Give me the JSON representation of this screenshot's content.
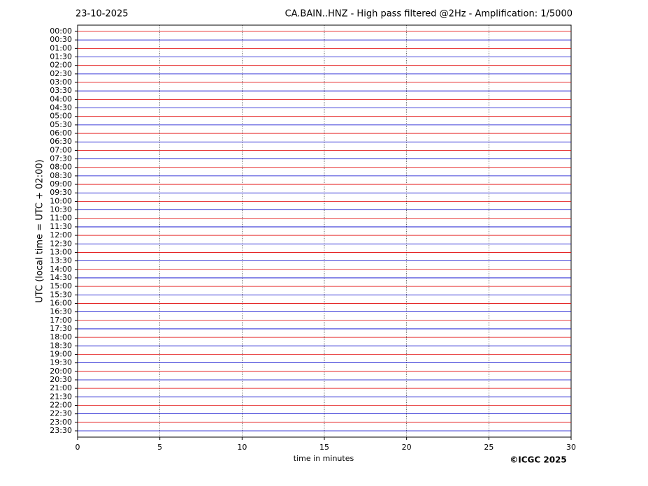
{
  "chart_data": {
    "type": "helicorder",
    "date": "23-10-2025",
    "title": "CA.BAIN..HNZ - High pass filtered @2Hz - Amplification: 1/5000",
    "ylabel": "UTC (local time = UTC + 02:00)",
    "xlabel": "time in minutes",
    "copyright": "©ICGC 2025",
    "categories": [
      "00:00",
      "00:30",
      "01:00",
      "01:30",
      "02:00",
      "02:30",
      "03:00",
      "03:30",
      "04:00",
      "04:30",
      "05:00",
      "05:30",
      "06:00",
      "06:30",
      "07:00",
      "07:30",
      "08:00",
      "08:30",
      "09:00",
      "09:30",
      "10:00",
      "10:30",
      "11:00",
      "11:30",
      "12:00",
      "12:30",
      "13:00",
      "13:30",
      "14:00",
      "14:30",
      "15:00",
      "15:30",
      "16:00",
      "16:30",
      "17:00",
      "17:30",
      "18:00",
      "18:30",
      "19:00",
      "19:30",
      "20:00",
      "20:30",
      "21:00",
      "21:30",
      "22:00",
      "22:30",
      "23:00",
      "23:30"
    ],
    "xlim": [
      0,
      30
    ],
    "xticks": [
      0,
      5,
      10,
      15,
      20,
      25,
      30
    ],
    "grid": true,
    "trace_colors": [
      "#e00000",
      "#0000cc"
    ]
  }
}
